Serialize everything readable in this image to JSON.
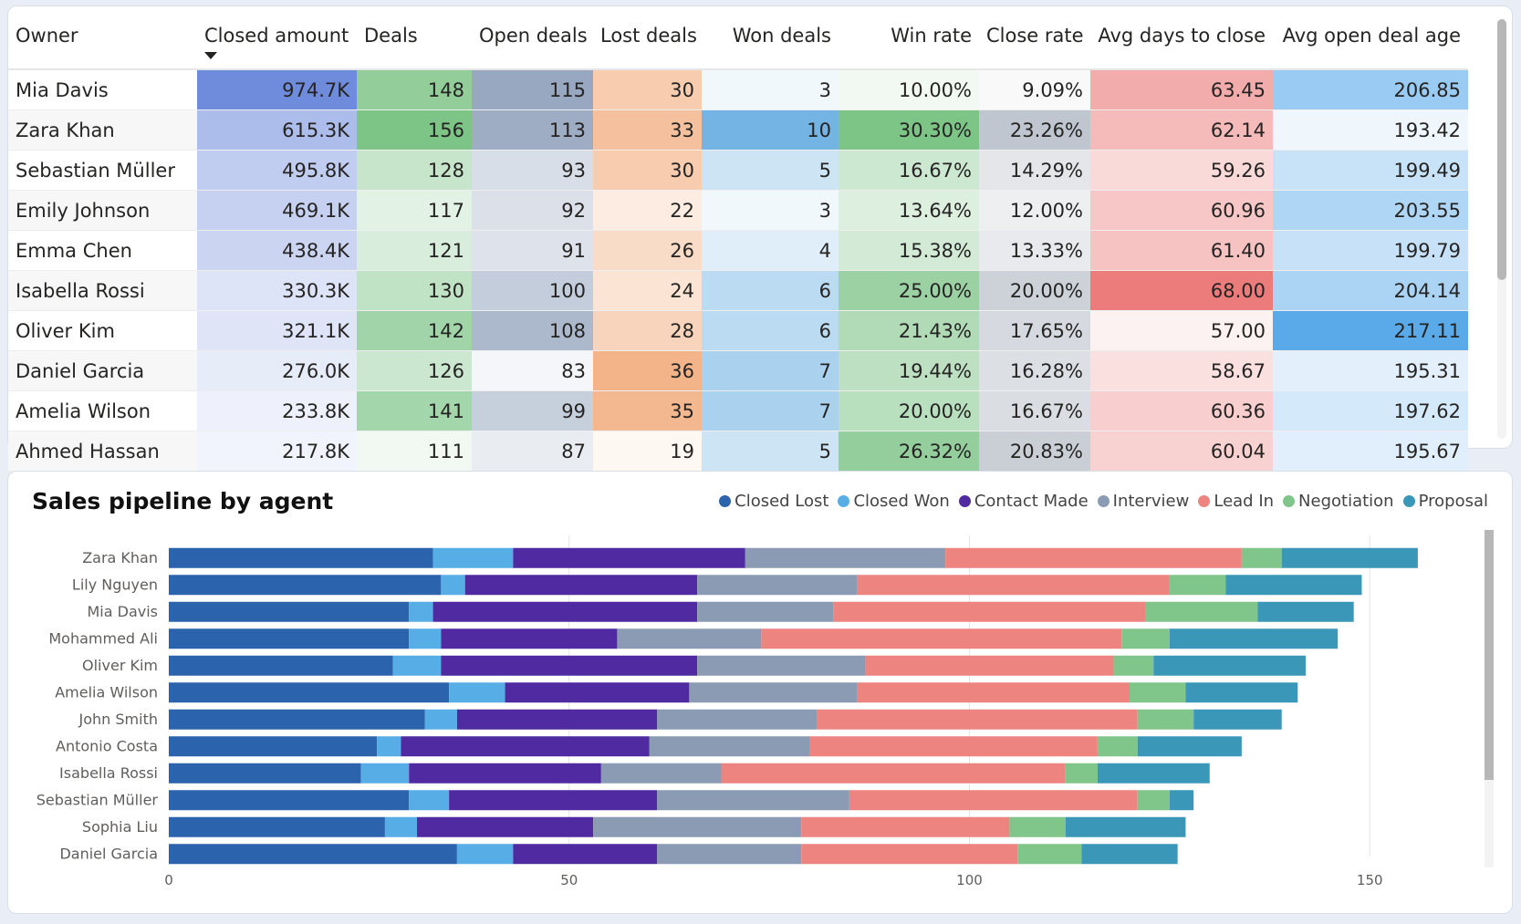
{
  "colors": {
    "closed_amount": "#6f8cdc",
    "deals": "#7dc487",
    "open_deals": "#98a8c0",
    "lost_deals": "#f3b48a",
    "won_deals": "#74b4e4",
    "win_rate": "#7dc487",
    "close_rate": "#c0c6cf",
    "avg_days": "#ec7b7b",
    "avg_age": "#5aaaea"
  },
  "table": {
    "columns": [
      {
        "key": "owner",
        "label": "Owner",
        "align": "l"
      },
      {
        "key": "closed_amount",
        "label": "Closed amount",
        "align": "l",
        "sorted": true
      },
      {
        "key": "deals",
        "label": "Deals",
        "align": "l"
      },
      {
        "key": "open_deals",
        "label": "Open deals",
        "align": "r"
      },
      {
        "key": "lost_deals",
        "label": "Lost deals",
        "align": "r"
      },
      {
        "key": "won_deals",
        "label": "Won deals",
        "align": "r"
      },
      {
        "key": "win_rate",
        "label": "Win rate",
        "align": "r"
      },
      {
        "key": "close_rate",
        "label": "Close rate",
        "align": "r"
      },
      {
        "key": "avg_days",
        "label": "Avg days to close",
        "align": "r"
      },
      {
        "key": "avg_age",
        "label": "Avg open deal age",
        "align": "r"
      }
    ],
    "rows": [
      {
        "owner": "Mia Davis",
        "closed_amount": "974.7K",
        "deals": "148",
        "open_deals": "115",
        "lost_deals": "30",
        "won_deals": "3",
        "win_rate": "10.00%",
        "close_rate": "9.09%",
        "avg_days": "63.45",
        "avg_age": "206.85"
      },
      {
        "owner": "Zara Khan",
        "closed_amount": "615.3K",
        "deals": "156",
        "open_deals": "113",
        "lost_deals": "33",
        "won_deals": "10",
        "win_rate": "30.30%",
        "close_rate": "23.26%",
        "avg_days": "62.14",
        "avg_age": "193.42"
      },
      {
        "owner": "Sebastian Müller",
        "closed_amount": "495.8K",
        "deals": "128",
        "open_deals": "93",
        "lost_deals": "30",
        "won_deals": "5",
        "win_rate": "16.67%",
        "close_rate": "14.29%",
        "avg_days": "59.26",
        "avg_age": "199.49"
      },
      {
        "owner": "Emily Johnson",
        "closed_amount": "469.1K",
        "deals": "117",
        "open_deals": "92",
        "lost_deals": "22",
        "won_deals": "3",
        "win_rate": "13.64%",
        "close_rate": "12.00%",
        "avg_days": "60.96",
        "avg_age": "203.55"
      },
      {
        "owner": "Emma Chen",
        "closed_amount": "438.4K",
        "deals": "121",
        "open_deals": "91",
        "lost_deals": "26",
        "won_deals": "4",
        "win_rate": "15.38%",
        "close_rate": "13.33%",
        "avg_days": "61.40",
        "avg_age": "199.79"
      },
      {
        "owner": "Isabella Rossi",
        "closed_amount": "330.3K",
        "deals": "130",
        "open_deals": "100",
        "lost_deals": "24",
        "won_deals": "6",
        "win_rate": "25.00%",
        "close_rate": "20.00%",
        "avg_days": "68.00",
        "avg_age": "204.14"
      },
      {
        "owner": "Oliver Kim",
        "closed_amount": "321.1K",
        "deals": "142",
        "open_deals": "108",
        "lost_deals": "28",
        "won_deals": "6",
        "win_rate": "21.43%",
        "close_rate": "17.65%",
        "avg_days": "57.00",
        "avg_age": "217.11"
      },
      {
        "owner": "Daniel Garcia",
        "closed_amount": "276.0K",
        "deals": "126",
        "open_deals": "83",
        "lost_deals": "36",
        "won_deals": "7",
        "win_rate": "19.44%",
        "close_rate": "16.28%",
        "avg_days": "58.67",
        "avg_age": "195.31"
      },
      {
        "owner": "Amelia Wilson",
        "closed_amount": "233.8K",
        "deals": "141",
        "open_deals": "99",
        "lost_deals": "35",
        "won_deals": "7",
        "win_rate": "20.00%",
        "close_rate": "16.67%",
        "avg_days": "60.36",
        "avg_age": "197.62"
      },
      {
        "owner": "Ahmed Hassan",
        "closed_amount": "217.8K",
        "deals": "111",
        "open_deals": "87",
        "lost_deals": "19",
        "won_deals": "5",
        "win_rate": "26.32%",
        "close_rate": "20.83%",
        "avg_days": "60.04",
        "avg_age": "195.67"
      }
    ]
  },
  "chart_data": {
    "type": "bar",
    "orientation": "horizontal",
    "stacked": true,
    "title": "Sales pipeline by agent",
    "legend_position": "top-right",
    "xlim": [
      0,
      160
    ],
    "xticks": [
      0,
      50,
      100,
      150
    ],
    "grid": true,
    "categories": [
      "Zara Khan",
      "Lily Nguyen",
      "Mia Davis",
      "Mohammed Ali",
      "Oliver Kim",
      "Amelia Wilson",
      "John Smith",
      "Antonio Costa",
      "Isabella Rossi",
      "Sebastian Müller",
      "Sophia Liu",
      "Daniel Garcia"
    ],
    "series": [
      {
        "name": "Closed Lost",
        "color": "#2b64ad",
        "values": [
          33,
          34,
          30,
          30,
          28,
          35,
          32,
          26,
          24,
          30,
          27,
          36
        ]
      },
      {
        "name": "Closed Won",
        "color": "#57aee6",
        "values": [
          10,
          3,
          3,
          4,
          6,
          7,
          4,
          3,
          6,
          5,
          4,
          7
        ]
      },
      {
        "name": "Contact Made",
        "color": "#4f2aa0",
        "values": [
          29,
          29,
          33,
          22,
          32,
          23,
          25,
          31,
          24,
          26,
          22,
          18
        ]
      },
      {
        "name": "Interview",
        "color": "#8a9bb3",
        "values": [
          25,
          20,
          17,
          18,
          21,
          21,
          20,
          20,
          15,
          24,
          26,
          18
        ]
      },
      {
        "name": "Lead In",
        "color": "#ee8480",
        "values": [
          37,
          39,
          39,
          45,
          31,
          34,
          40,
          36,
          43,
          36,
          26,
          27
        ]
      },
      {
        "name": "Negotiation",
        "color": "#80c68a",
        "values": [
          5,
          7,
          14,
          6,
          5,
          7,
          7,
          5,
          4,
          4,
          7,
          8
        ]
      },
      {
        "name": "Proposal",
        "color": "#3b97b8",
        "values": [
          17,
          17,
          12,
          21,
          19,
          14,
          11,
          13,
          14,
          3,
          15,
          12
        ]
      }
    ]
  }
}
